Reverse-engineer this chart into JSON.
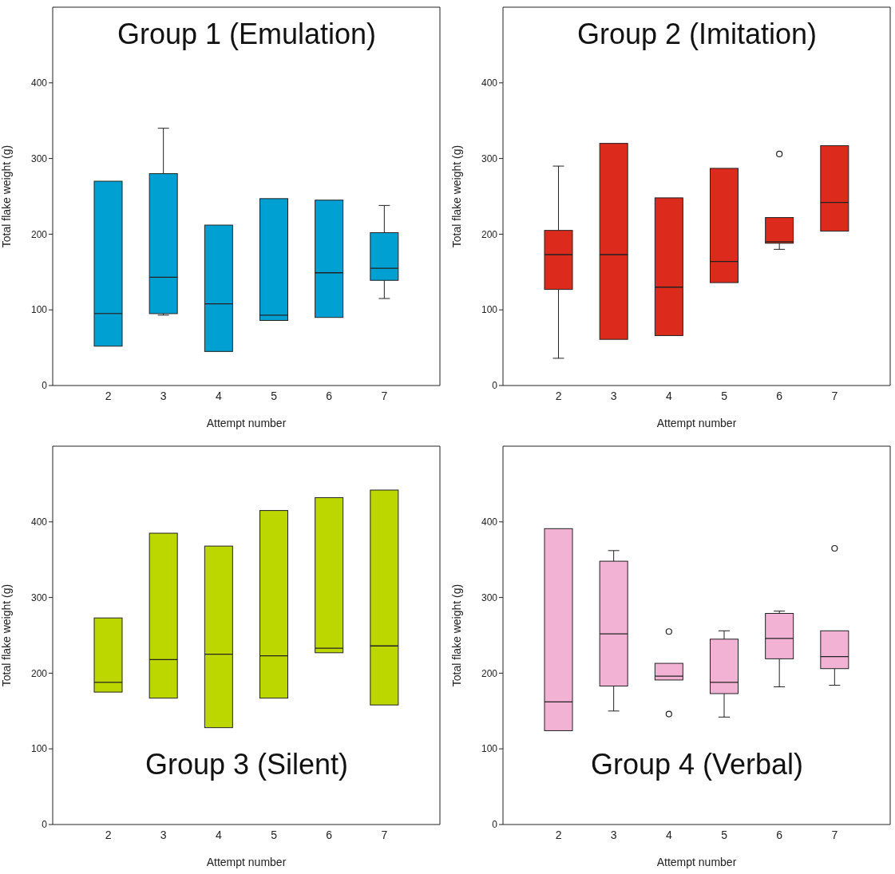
{
  "chart_data": [
    {
      "type": "box",
      "title": "Group 1 (Emulation)",
      "xlabel": "Attempt number",
      "ylabel": "Total flake weight (g)",
      "categories": [
        "2",
        "3",
        "4",
        "5",
        "6",
        "7"
      ],
      "color": "#00a0d2",
      "ylim": [
        0,
        500
      ],
      "yticks": [
        0,
        100,
        200,
        300,
        400
      ],
      "boxes": [
        {
          "low": 52,
          "q1": 52,
          "median": 95,
          "q3": 270,
          "high": 270
        },
        {
          "low": 93,
          "q1": 95,
          "median": 143,
          "q3": 280,
          "high": 340
        },
        {
          "low": 45,
          "q1": 45,
          "median": 108,
          "q3": 212,
          "high": 212
        },
        {
          "low": 86,
          "q1": 86,
          "median": 93,
          "q3": 247,
          "high": 247
        },
        {
          "low": 90,
          "q1": 90,
          "median": 149,
          "q3": 245,
          "high": 245
        },
        {
          "low": 115,
          "q1": 139,
          "median": 155,
          "q3": 202,
          "high": 238
        }
      ]
    },
    {
      "type": "box",
      "title": "Group 2 (Imitation)",
      "xlabel": "Attempt number",
      "ylabel": "Total flake weight (g)",
      "categories": [
        "2",
        "3",
        "4",
        "5",
        "6",
        "7"
      ],
      "color": "#dc2a1c",
      "ylim": [
        0,
        500
      ],
      "yticks": [
        0,
        100,
        200,
        300,
        400
      ],
      "boxes": [
        {
          "low": 36,
          "q1": 127,
          "median": 173,
          "q3": 205,
          "high": 290
        },
        {
          "low": 61,
          "q1": 61,
          "median": 173,
          "q3": 320,
          "high": 320
        },
        {
          "low": 66,
          "q1": 66,
          "median": 130,
          "q3": 248,
          "high": 248
        },
        {
          "low": 136,
          "q1": 136,
          "median": 164,
          "q3": 287,
          "high": 287
        },
        {
          "low": 180,
          "q1": 188,
          "median": 190,
          "q3": 222,
          "high": 222,
          "outliers": [
            306
          ]
        },
        {
          "low": 204,
          "q1": 204,
          "median": 242,
          "q3": 317,
          "high": 317
        }
      ]
    },
    {
      "type": "box",
      "title": "Group 3 (Silent)",
      "xlabel": "Attempt number",
      "ylabel": "Total flake weight (g)",
      "categories": [
        "2",
        "3",
        "4",
        "5",
        "6",
        "7"
      ],
      "color": "#bcd600",
      "ylim": [
        0,
        500
      ],
      "yticks": [
        0,
        100,
        200,
        300,
        400
      ],
      "boxes": [
        {
          "low": 175,
          "q1": 175,
          "median": 188,
          "q3": 273,
          "high": 273
        },
        {
          "low": 167,
          "q1": 167,
          "median": 218,
          "q3": 385,
          "high": 385
        },
        {
          "low": 128,
          "q1": 128,
          "median": 225,
          "q3": 368,
          "high": 368
        },
        {
          "low": 167,
          "q1": 167,
          "median": 223,
          "q3": 415,
          "high": 415
        },
        {
          "low": 227,
          "q1": 227,
          "median": 233,
          "q3": 432,
          "high": 432
        },
        {
          "low": 158,
          "q1": 158,
          "median": 236,
          "q3": 442,
          "high": 442
        }
      ]
    },
    {
      "type": "box",
      "title": "Group 4 (Verbal)",
      "xlabel": "Attempt number",
      "ylabel": "Total flake weight (g)",
      "categories": [
        "2",
        "3",
        "4",
        "5",
        "6",
        "7"
      ],
      "color": "#f2b2d4",
      "ylim": [
        0,
        500
      ],
      "yticks": [
        0,
        100,
        200,
        300,
        400
      ],
      "boxes": [
        {
          "low": 124,
          "q1": 124,
          "median": 162,
          "q3": 391,
          "high": 391
        },
        {
          "low": 150,
          "q1": 183,
          "median": 252,
          "q3": 348,
          "high": 362
        },
        {
          "low": 191,
          "q1": 191,
          "median": 196,
          "q3": 213,
          "high": 213,
          "outliers": [
            255,
            146
          ]
        },
        {
          "low": 142,
          "q1": 173,
          "median": 188,
          "q3": 245,
          "high": 256
        },
        {
          "low": 182,
          "q1": 219,
          "median": 246,
          "q3": 279,
          "high": 282
        },
        {
          "low": 184,
          "q1": 206,
          "median": 222,
          "q3": 256,
          "high": 256,
          "outliers": [
            365
          ]
        }
      ]
    }
  ]
}
